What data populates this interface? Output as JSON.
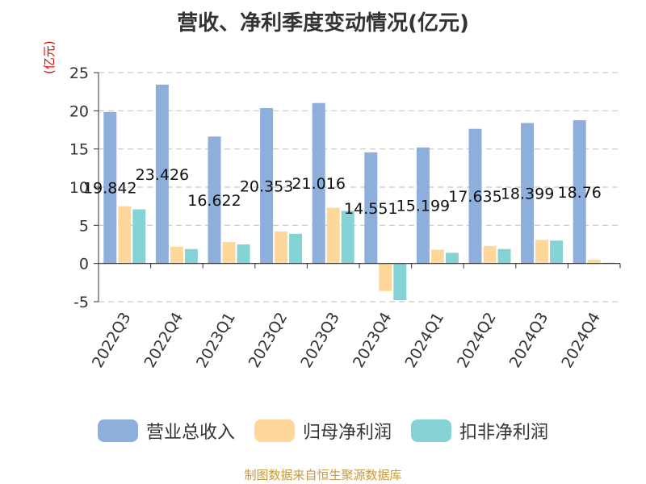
{
  "chart_data": {
    "type": "bar",
    "title": "营收、净利季度变动情况(亿元)",
    "ylabel": "(亿元)",
    "xlabel": "",
    "ylim": [
      -5,
      25
    ],
    "yticks": [
      -5,
      0,
      5,
      10,
      15,
      20,
      25
    ],
    "grid": true,
    "legend_position": "bottom",
    "categories": [
      "2022Q3",
      "2022Q4",
      "2023Q1",
      "2023Q2",
      "2023Q3",
      "2023Q4",
      "2024Q1",
      "2024Q2",
      "2024Q3",
      "2024Q4"
    ],
    "series": [
      {
        "name": "营业总收入",
        "color": "#8eaedb",
        "values": [
          19.842,
          23.426,
          16.622,
          20.353,
          21.016,
          14.551,
          15.199,
          17.635,
          18.399,
          18.76
        ],
        "labels": [
          "19.842",
          "23.426",
          "16.622",
          "20.353",
          "21.016",
          "14.551",
          "15.199",
          "17.635",
          "18.399",
          "18.76"
        ]
      },
      {
        "name": "归母净利润",
        "color": "#fdd89a",
        "values": [
          7.5,
          2.2,
          2.8,
          4.2,
          7.3,
          -3.6,
          1.8,
          2.3,
          3.1,
          0.5
        ]
      },
      {
        "name": "扣非净利润",
        "color": "#86d3d6",
        "values": [
          7.1,
          1.9,
          2.5,
          3.9,
          6.9,
          -4.8,
          1.4,
          1.9,
          3.0,
          0.1
        ]
      }
    ]
  },
  "footer": {
    "source": "制图数据来自恒生聚源数据库"
  }
}
